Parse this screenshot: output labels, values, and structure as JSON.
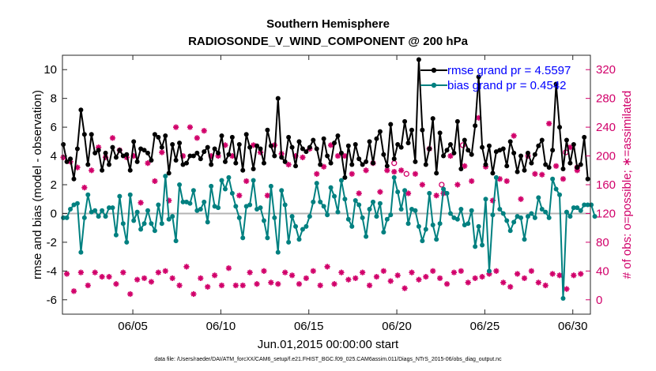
{
  "chart_data": {
    "type": "line",
    "title": "Southern Hemisphere",
    "subtitle": "RADIOSONDE_V_WIND_COMPONENT @ 200 hPa",
    "xlabel": "Jun.01,2015 00:00:00 start",
    "ylabel": "rmse and bias (model - observation)",
    "ylabel_right": "# of obs: o=possible; ∗=assimilated",
    "x_ticks": [
      {
        "x": 5,
        "label": "06/05"
      },
      {
        "x": 10,
        "label": "06/10"
      },
      {
        "x": 15,
        "label": "06/15"
      },
      {
        "x": 20,
        "label": "06/20"
      },
      {
        "x": 25,
        "label": "06/25"
      },
      {
        "x": 30,
        "label": "06/30"
      }
    ],
    "xlim": [
      1,
      31
    ],
    "ylim": [
      -7,
      11
    ],
    "ylim_right": [
      -20,
      340
    ],
    "y_ticks": [
      "-6",
      "-4",
      "-2",
      "0",
      "2",
      "4",
      "6",
      "8",
      "10"
    ],
    "y_ticks_right": [
      "0",
      "40",
      "80",
      "120",
      "160",
      "200",
      "240",
      "280",
      "320"
    ],
    "grid": false,
    "legend_position": "top-right",
    "footnote": "data file: /Users/raeder/DAI/ATM_forcXX/CAM6_setup/f.e21.FHIST_BGC.f09_025.CAM6assim.011/Diags_NTrS_2015-06/obs_diag_output.nc",
    "colors": {
      "rmse": "#000000",
      "bias": "#008080",
      "obs": "#d1006a",
      "zero": "#b4b4b4",
      "legend_text": "#0000ff"
    },
    "series": [
      {
        "name": "rmse",
        "legend": "rmse grand pr = 4.5597",
        "values": [
          4.8,
          3.6,
          3.8,
          2.4,
          4.5,
          7.2,
          5.5,
          3.4,
          5.5,
          4.2,
          4.4,
          3.0,
          4.2,
          3.4,
          4.6,
          3.9,
          4.4,
          4.0,
          4.1,
          3.0,
          5.0,
          3.6,
          4.5,
          4.4,
          4.2,
          3.7,
          5.5,
          5.3,
          4.6,
          5.4,
          2.8,
          4.8,
          3.7,
          4.9,
          3.4,
          3.5,
          4.0,
          4.0,
          4.2,
          3.8,
          4.3,
          4.6,
          3.4,
          4.5,
          4.2,
          5.4,
          3.6,
          4.1,
          5.3,
          3.5,
          4.8,
          3.0,
          5.5,
          4.6,
          3.1,
          4.7,
          4.5,
          3.5,
          5.8,
          4.7,
          4.0,
          8.0,
          3.9,
          3.6,
          5.3,
          4.6,
          3.3,
          5.0,
          4.5,
          4.3,
          4.6,
          5.1,
          4.5,
          3.4,
          5.2,
          4.0,
          3.5,
          4.9,
          5.4,
          4.2,
          2.5,
          4.7,
          3.4,
          4.8,
          3.8,
          3.4,
          3.6,
          5.0,
          3.5,
          5.2,
          5.7,
          4.1,
          3.3,
          6.2,
          3.8,
          4.8,
          4.6,
          6.4,
          4.9,
          5.8,
          3.6,
          10.7,
          5.8,
          3.4,
          4.5,
          6.6,
          2.8,
          5.6,
          4.0,
          4.4,
          4.8,
          4.2,
          6.4,
          3.1,
          5.1,
          4.4,
          4.1,
          6.1,
          9.5,
          4.6,
          3.4,
          4.7,
          2.8,
          4.3,
          4.4,
          4.5,
          3.3,
          5.0,
          4.2,
          2.9,
          4.0,
          3.0,
          4.2,
          3.5,
          4.1,
          4.7,
          5.1,
          3.4,
          3.2,
          4.4,
          9.0,
          6.0,
          3.1,
          5.1,
          3.5,
          4.8,
          3.2,
          3.4,
          5.3,
          2.4
        ]
      },
      {
        "name": "bias",
        "legend": "bias grand pr = 0.4542",
        "values": [
          -0.3,
          -0.3,
          0.3,
          0.6,
          0.7,
          -2.7,
          -0.3,
          1.3,
          0.1,
          0.2,
          -0.2,
          0.2,
          -0.2,
          0.4,
          0.4,
          -1.5,
          1.2,
          -0.7,
          -2.0,
          1.3,
          -0.5,
          0.1,
          -1.1,
          -0.7,
          0.2,
          -0.7,
          -1.2,
          0.6,
          -0.7,
          2.6,
          -0.4,
          -0.2,
          -1.9,
          2.0,
          0.8,
          0.8,
          0.7,
          1.6,
          0.2,
          0.3,
          0.8,
          -0.6,
          1.9,
          0.5,
          0.4,
          2.3,
          1.7,
          2.5,
          1.4,
          0.5,
          -0.3,
          -1.7,
          0.5,
          0.6,
          2.3,
          0.3,
          0.4,
          -0.5,
          -1.7,
          1.9,
          -0.3,
          -2.7,
          1.6,
          0.6,
          -2.0,
          -0.2,
          -0.9,
          -1.8,
          -1.1,
          -0.9,
          -0.2,
          0.8,
          2.1,
          0.8,
          0.5,
          -0.1,
          1.8,
          1.2,
          0.1,
          2.3,
          1.0,
          -0.4,
          -0.9,
          0.9,
          0.6,
          -0.3,
          -1.6,
          0.3,
          0.8,
          -0.2,
          0.7,
          -1.3,
          -0.4,
          -0.1,
          2.5,
          1.5,
          0.3,
          1.6,
          -0.7,
          0.3,
          0.2,
          -0.9,
          -1.9,
          -1.1,
          1.4,
          -0.8,
          -1.8,
          -0.7,
          1.7,
          1.4,
          0.0,
          -0.3,
          -0.4,
          0.3,
          -0.8,
          -0.7,
          0.2,
          -2.3,
          -0.9,
          -2.2,
          1.0,
          -4.0,
          -0.1,
          2.5,
          0.3,
          0.0,
          -0.5,
          -1.2,
          -0.6,
          -0.2,
          -0.3,
          -1.8,
          -0.2,
          0.0,
          -0.3,
          1.1,
          0.3,
          0.1,
          -0.3,
          2.4,
          1.7,
          1.3,
          -5.9,
          0.1,
          -0.2,
          0.4,
          0.4,
          0.2,
          0.6,
          0.6,
          0.6,
          -0.2
        ]
      },
      {
        "name": "obs_assimilated",
        "values": [
          198,
          36,
          192,
          12,
          184,
          38,
          156,
          20,
          180,
          38,
          212,
          32,
          198,
          32,
          225,
          22,
          208,
          38,
          198,
          8,
          200,
          28,
          135,
          30,
          190,
          25,
          165,
          38,
          205,
          40,
          138,
          30,
          240,
          20,
          200,
          46,
          240,
          8,
          225,
          30,
          235,
          18,
          200,
          34,
          200,
          20,
          215,
          44,
          200,
          20,
          145,
          20,
          165,
          38,
          215,
          22,
          205,
          40,
          145,
          24,
          215,
          22,
          203,
          38,
          188,
          34,
          200,
          22,
          198,
          30,
          210,
          40,
          175,
          20,
          185,
          46,
          215,
          22,
          200,
          38,
          200,
          28,
          175,
          30,
          148,
          38,
          180,
          20,
          190,
          32,
          150,
          40,
          180,
          26,
          178,
          34,
          180,
          16,
          148,
          38,
          175,
          28,
          160,
          32,
          210,
          40,
          145,
          30,
          148,
          22,
          200,
          38,
          160,
          40,
          186,
          24,
          165,
          30,
          253,
          32,
          185,
          36,
          138,
          40,
          168,
          24,
          165,
          18,
          228,
          36,
          140,
          30,
          200,
          40,
          175,
          24,
          174,
          20,
          245,
          36,
          186,
          34,
          168,
          15,
          212,
          34,
          180,
          36
        ]
      },
      {
        "name": "obs_possible_extra",
        "values": [
          {
            "x": 19.85,
            "y": 190
          },
          {
            "x": 20.55,
            "y": 175
          },
          {
            "x": 22.55,
            "y": 160
          },
          {
            "x": 23.75,
            "y": 215
          },
          {
            "x": 29.6,
            "y": 205
          },
          {
            "x": 30.25,
            "y": 184
          }
        ]
      }
    ]
  }
}
